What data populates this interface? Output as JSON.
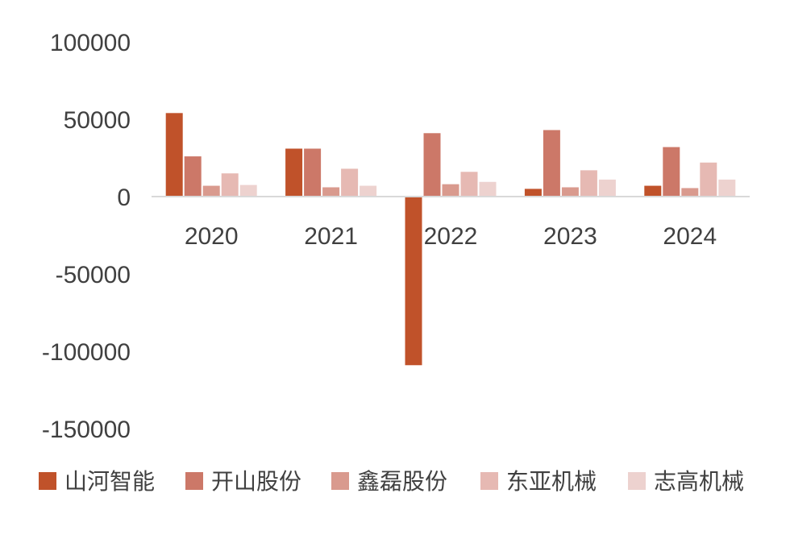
{
  "chart_data": {
    "type": "bar",
    "categories": [
      "2020",
      "2021",
      "2022",
      "2023",
      "2024"
    ],
    "series": [
      {
        "name": "山河智能",
        "color": "#C0522A",
        "values": [
          54000,
          31000,
          -109000,
          5000,
          7000
        ]
      },
      {
        "name": "开山股份",
        "color": "#CC7868",
        "values": [
          26000,
          31000,
          41000,
          43000,
          32000
        ]
      },
      {
        "name": "鑫磊股份",
        "color": "#D99A8E",
        "values": [
          7000,
          6000,
          8000,
          6000,
          5500
        ]
      },
      {
        "name": "东亚机械",
        "color": "#E6B9B3",
        "values": [
          15000,
          18000,
          16000,
          17000,
          22000
        ]
      },
      {
        "name": "志高机械",
        "color": "#EDD2CF",
        "values": [
          7500,
          7000,
          9500,
          11000,
          11000
        ]
      }
    ],
    "ylim": [
      -150000,
      100000
    ],
    "yticks": [
      "100000",
      "50000",
      "0",
      "-50000",
      "-100000",
      "-150000"
    ],
    "axis_color": "#D9D9D9",
    "grid": false,
    "legend_position": "bottom",
    "title": "",
    "xlabel": "",
    "ylabel": ""
  }
}
